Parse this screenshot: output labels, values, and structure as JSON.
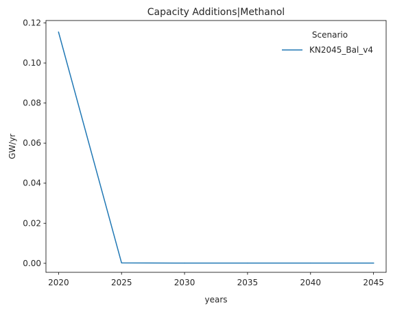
{
  "chart_data": {
    "type": "line",
    "title": "Capacity Additions|Methanol",
    "xlabel": "years",
    "ylabel": "GW/yr",
    "x": [
      2020,
      2025,
      2030,
      2035,
      2040,
      2045
    ],
    "series": [
      {
        "name": "KN2045_Bal_v4",
        "color": "#1f77b4",
        "values": [
          0.1154,
          0.0002,
          0.0001,
          0.0001,
          0.0001,
          0.0001
        ]
      }
    ],
    "xlim": [
      2019,
      2046
    ],
    "ylim": [
      -0.0045,
      0.1212
    ],
    "x_ticks": [
      "2020",
      "2025",
      "2030",
      "2035",
      "2040",
      "2045"
    ],
    "y_ticks": [
      "0.00",
      "0.02",
      "0.04",
      "0.06",
      "0.08",
      "0.10",
      "0.12"
    ],
    "legend": {
      "title": "Scenario",
      "placement": "top-right"
    },
    "grid": false
  }
}
